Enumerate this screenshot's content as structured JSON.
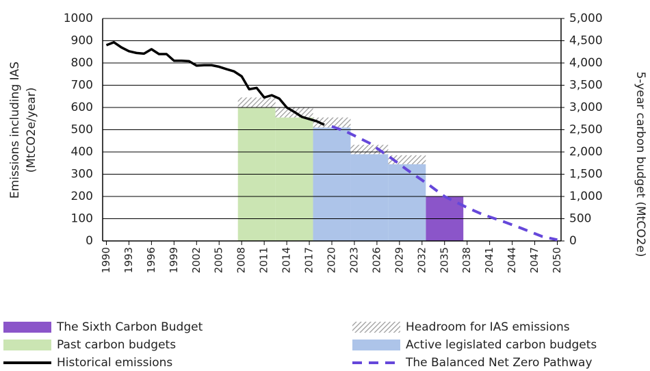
{
  "chart_data": {
    "type": "bar",
    "ylabel": [
      "Emissions including IAS",
      "(MtCO2e/year)"
    ],
    "y2label": "5-year carbon budget (MtCO2e)",
    "xlim": [
      1989.5,
      2050.5
    ],
    "xticks": [
      1990,
      1993,
      1996,
      1999,
      2002,
      2005,
      2008,
      2011,
      2014,
      2017,
      2020,
      2023,
      2026,
      2029,
      2032,
      2035,
      2038,
      2041,
      2044,
      2047,
      2050
    ],
    "ylim": [
      0,
      1000
    ],
    "yticks": [
      0,
      100,
      200,
      300,
      400,
      500,
      600,
      700,
      800,
      900,
      1000
    ],
    "y2lim": [
      0,
      5000
    ],
    "y2ticks": [
      0,
      500,
      {
        "value": 1000,
        "label": "1,000"
      },
      {
        "value": 1500,
        "label": "1,500"
      },
      {
        "value": 2000,
        "label": "2,000"
      },
      {
        "value": 2500,
        "label": "2,500"
      },
      {
        "value": 3000,
        "label": "3,000"
      },
      {
        "value": 3500,
        "label": "3,500"
      },
      {
        "value": 4000,
        "label": "4,000"
      },
      {
        "value": 4500,
        "label": "4,500"
      },
      {
        "value": 5000,
        "label": "5,000"
      }
    ],
    "grid": true,
    "series": [
      {
        "name": "The Sixth Carbon Budget",
        "type": "bar",
        "axis": "y2",
        "color": "#8b55c9",
        "x": [
          [
            2033,
            2037
          ]
        ],
        "values": [
          1000
        ]
      },
      {
        "name": "Headroom for IAS emissions",
        "type": "bar",
        "axis": "y2",
        "pattern": "hatch",
        "stacked": true,
        "color": "#9a9a9a",
        "x": [
          [
            2008,
            2012
          ],
          [
            2013,
            2017
          ],
          [
            2018,
            2022
          ],
          [
            2023,
            2027
          ],
          [
            2028,
            2032
          ]
        ],
        "values": [
          225,
          225,
          225,
          210,
          200
        ]
      },
      {
        "name": "Past carbon budgets",
        "type": "bar",
        "axis": "y2",
        "color": "#cbe5b3",
        "x": [
          [
            2008,
            2012
          ],
          [
            2013,
            2017
          ]
        ],
        "values": [
          3000,
          2775
        ]
      },
      {
        "name": "Active legislated carbon budgets",
        "type": "bar",
        "axis": "y2",
        "color": "#adc4e9",
        "x": [
          [
            2018,
            2022
          ],
          [
            2023,
            2027
          ],
          [
            2028,
            2032
          ]
        ],
        "values": [
          2550,
          1950,
          1725
        ]
      },
      {
        "name": "Historical emissions",
        "type": "line",
        "color": "#000000",
        "x": [
          1990,
          1991,
          1992,
          1993,
          1994,
          1995,
          1996,
          1997,
          1998,
          1999,
          2000,
          2001,
          2002,
          2003,
          2004,
          2005,
          2006,
          2007,
          2008,
          2009,
          2010,
          2011,
          2012,
          2013,
          2014,
          2015,
          2016,
          2017,
          2018,
          2019
        ],
        "values": [
          880,
          893,
          870,
          853,
          845,
          842,
          862,
          840,
          840,
          810,
          810,
          808,
          788,
          790,
          790,
          783,
          772,
          762,
          740,
          682,
          688,
          645,
          655,
          640,
          600,
          580,
          558,
          548,
          538,
          522
        ]
      },
      {
        "name": "The Balanced Net Zero Pathway",
        "type": "line",
        "dashed": true,
        "color": "#6547da",
        "x": [
          2020,
          2022,
          2025,
          2028,
          2030,
          2033,
          2035,
          2038,
          2040,
          2043,
          2045,
          2048,
          2050
        ],
        "values": [
          515,
          490,
          440,
          370,
          320,
          250,
          200,
          150,
          120,
          85,
          60,
          20,
          5
        ]
      }
    ]
  }
}
